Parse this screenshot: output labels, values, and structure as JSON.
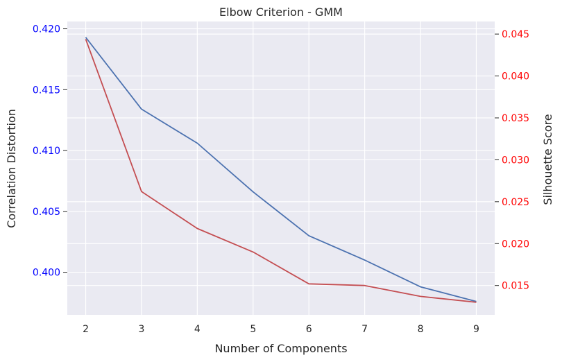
{
  "chart_data": {
    "type": "line",
    "title": "Elbow Criterion - GMM",
    "xlabel": "Number of Components",
    "ylabel_left": "Correlation Distortion",
    "ylabel_right": "Silhouette Score",
    "x": [
      2,
      3,
      4,
      5,
      6,
      7,
      8,
      9
    ],
    "xlim": [
      1.67,
      9.33
    ],
    "x_ticks": [
      "2",
      "3",
      "4",
      "5",
      "6",
      "7",
      "8",
      "9"
    ],
    "ylim_left": [
      0.3965,
      0.4206
    ],
    "ylim_right": [
      0.0115,
      0.0465
    ],
    "y_ticks_left": [
      "0.400",
      "0.405",
      "0.410",
      "0.415",
      "0.420"
    ],
    "y_ticks_left_values": [
      0.4,
      0.405,
      0.41,
      0.415,
      0.42
    ],
    "y_ticks_right": [
      "0.015",
      "0.020",
      "0.025",
      "0.030",
      "0.035",
      "0.040",
      "0.045"
    ],
    "y_ticks_right_values": [
      0.015,
      0.02,
      0.025,
      0.03,
      0.035,
      0.04,
      0.045
    ],
    "grid": true,
    "series": [
      {
        "axis": "left",
        "color": "#4c72b0",
        "values": [
          0.4193,
          0.4134,
          0.4106,
          0.4066,
          0.403,
          0.401,
          0.3988,
          0.3976
        ]
      },
      {
        "axis": "right",
        "color": "#c44e52",
        "values": [
          0.0444,
          0.0262,
          0.0218,
          0.019,
          0.0152,
          0.015,
          0.0137,
          0.013
        ]
      }
    ],
    "colors": {
      "plot_background": "#eaeaf2",
      "grid": "#ffffff",
      "left_tick_color": "#0000ff",
      "right_tick_color": "#ff0000",
      "text": "#262626"
    }
  }
}
